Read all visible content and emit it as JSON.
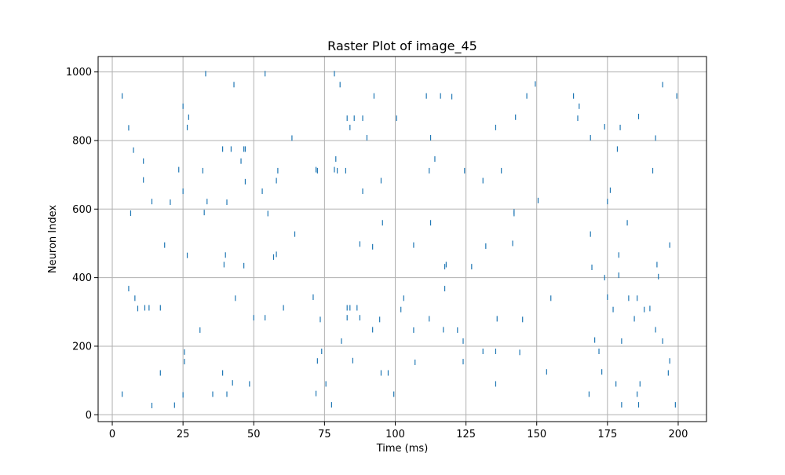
{
  "chart_data": {
    "type": "scatter",
    "subtype": "raster",
    "title": "Raster Plot of image_45",
    "xlabel": "Time (ms)",
    "ylabel": "Neuron Index",
    "xlim": [
      -5,
      210
    ],
    "ylim": [
      -20,
      1045
    ],
    "xticks": [
      0,
      25,
      50,
      75,
      100,
      125,
      150,
      175,
      200
    ],
    "yticks": [
      0,
      200,
      400,
      600,
      800,
      1000
    ],
    "grid": true,
    "marker": "|",
    "color": "#1f77b4",
    "grid_color": "#b0b0b0",
    "points": [
      [
        3.5,
        60
      ],
      [
        3.5,
        930
      ],
      [
        5.8,
        837
      ],
      [
        5.8,
        368
      ],
      [
        6.5,
        588
      ],
      [
        7.5,
        772
      ],
      [
        8,
        340
      ],
      [
        9,
        310
      ],
      [
        11,
        740
      ],
      [
        11,
        685
      ],
      [
        11.5,
        312
      ],
      [
        13,
        312
      ],
      [
        14,
        622
      ],
      [
        14,
        27
      ],
      [
        17,
        312
      ],
      [
        17,
        122
      ],
      [
        18.5,
        495
      ],
      [
        20.5,
        620
      ],
      [
        22,
        28
      ],
      [
        23.5,
        715
      ],
      [
        25,
        652
      ],
      [
        25,
        900
      ],
      [
        25,
        58
      ],
      [
        25.5,
        155
      ],
      [
        25.5,
        183
      ],
      [
        26.5,
        465
      ],
      [
        26.5,
        838
      ],
      [
        27,
        868
      ],
      [
        31,
        247
      ],
      [
        32,
        712
      ],
      [
        32.5,
        590
      ],
      [
        33,
        995
      ],
      [
        33.5,
        622
      ],
      [
        35.5,
        60
      ],
      [
        39,
        122
      ],
      [
        39,
        775
      ],
      [
        39.5,
        438
      ],
      [
        40,
        466
      ],
      [
        40.5,
        620
      ],
      [
        40.5,
        60
      ],
      [
        42,
        775
      ],
      [
        42.5,
        93
      ],
      [
        43,
        963
      ],
      [
        43.5,
        340
      ],
      [
        45.5,
        740
      ],
      [
        46.5,
        775
      ],
      [
        46.5,
        435
      ],
      [
        47,
        680
      ],
      [
        47,
        775
      ],
      [
        48.5,
        90
      ],
      [
        50,
        283
      ],
      [
        53,
        652
      ],
      [
        54,
        283
      ],
      [
        54,
        995
      ],
      [
        55,
        587
      ],
      [
        57,
        460
      ],
      [
        58,
        468
      ],
      [
        58,
        683
      ],
      [
        58.5,
        712
      ],
      [
        60.5,
        312
      ],
      [
        63.5,
        807
      ],
      [
        64.5,
        527
      ],
      [
        71,
        343
      ],
      [
        72,
        715
      ],
      [
        72,
        62
      ],
      [
        72.5,
        712
      ],
      [
        72.5,
        157
      ],
      [
        73.5,
        278
      ],
      [
        74,
        185
      ],
      [
        75.5,
        90
      ],
      [
        77.5,
        29
      ],
      [
        78.5,
        715
      ],
      [
        78.5,
        995
      ],
      [
        79,
        746
      ],
      [
        79.5,
        712
      ],
      [
        80.5,
        963
      ],
      [
        81,
        215
      ],
      [
        82.5,
        712
      ],
      [
        83,
        312
      ],
      [
        83,
        865
      ],
      [
        83,
        283
      ],
      [
        84,
        838
      ],
      [
        84,
        312
      ],
      [
        85,
        158
      ],
      [
        85.5,
        865
      ],
      [
        86.5,
        312
      ],
      [
        87.5,
        498
      ],
      [
        87.5,
        283
      ],
      [
        88.5,
        652
      ],
      [
        88.5,
        865
      ],
      [
        90,
        808
      ],
      [
        92,
        248
      ],
      [
        92,
        490
      ],
      [
        92.5,
        930
      ],
      [
        94.5,
        278
      ],
      [
        95,
        683
      ],
      [
        95,
        122
      ],
      [
        95.5,
        560
      ],
      [
        97.5,
        122
      ],
      [
        99.5,
        60
      ],
      [
        100.5,
        865
      ],
      [
        102,
        307
      ],
      [
        103,
        340
      ],
      [
        106.5,
        247
      ],
      [
        106.5,
        495
      ],
      [
        107,
        153
      ],
      [
        111,
        930
      ],
      [
        112,
        712
      ],
      [
        112,
        280
      ],
      [
        112.5,
        808
      ],
      [
        112.5,
        560
      ],
      [
        114,
        746
      ],
      [
        116,
        930
      ],
      [
        117,
        248
      ],
      [
        117.5,
        432
      ],
      [
        117.5,
        368
      ],
      [
        118,
        438
      ],
      [
        120,
        928
      ],
      [
        122,
        247
      ],
      [
        124,
        215
      ],
      [
        124,
        155
      ],
      [
        124.5,
        712
      ],
      [
        127,
        432
      ],
      [
        131,
        683
      ],
      [
        131,
        185
      ],
      [
        132,
        492
      ],
      [
        135.5,
        838
      ],
      [
        135.5,
        90
      ],
      [
        135.5,
        185
      ],
      [
        136,
        280
      ],
      [
        137.5,
        712
      ],
      [
        141.5,
        500
      ],
      [
        142,
        587
      ],
      [
        142,
        592
      ],
      [
        142.5,
        868
      ],
      [
        144,
        182
      ],
      [
        145,
        278
      ],
      [
        146.5,
        930
      ],
      [
        149.5,
        965
      ],
      [
        150.5,
        625
      ],
      [
        153.5,
        125
      ],
      [
        155,
        340
      ],
      [
        163,
        930
      ],
      [
        164.5,
        865
      ],
      [
        165,
        900
      ],
      [
        168.5,
        60
      ],
      [
        169,
        527
      ],
      [
        169,
        808
      ],
      [
        169.5,
        430
      ],
      [
        170.5,
        218
      ],
      [
        172,
        185
      ],
      [
        173,
        125
      ],
      [
        174,
        840
      ],
      [
        174,
        400
      ],
      [
        175,
        622
      ],
      [
        175,
        343
      ],
      [
        176,
        655
      ],
      [
        177,
        307
      ],
      [
        178,
        90
      ],
      [
        178.5,
        775
      ],
      [
        179,
        466
      ],
      [
        179,
        407
      ],
      [
        179.5,
        838
      ],
      [
        180,
        29
      ],
      [
        180,
        215
      ],
      [
        182,
        560
      ],
      [
        182.5,
        340
      ],
      [
        184.5,
        280
      ],
      [
        185.5,
        340
      ],
      [
        185.5,
        60
      ],
      [
        186,
        870
      ],
      [
        186,
        29
      ],
      [
        186.5,
        90
      ],
      [
        188,
        307
      ],
      [
        190,
        310
      ],
      [
        191,
        712
      ],
      [
        192,
        807
      ],
      [
        192,
        248
      ],
      [
        192.5,
        438
      ],
      [
        193,
        403
      ],
      [
        194.5,
        963
      ],
      [
        194.5,
        215
      ],
      [
        196.5,
        122
      ],
      [
        197,
        157
      ],
      [
        197,
        495
      ],
      [
        199,
        29
      ],
      [
        199.5,
        930
      ]
    ]
  }
}
